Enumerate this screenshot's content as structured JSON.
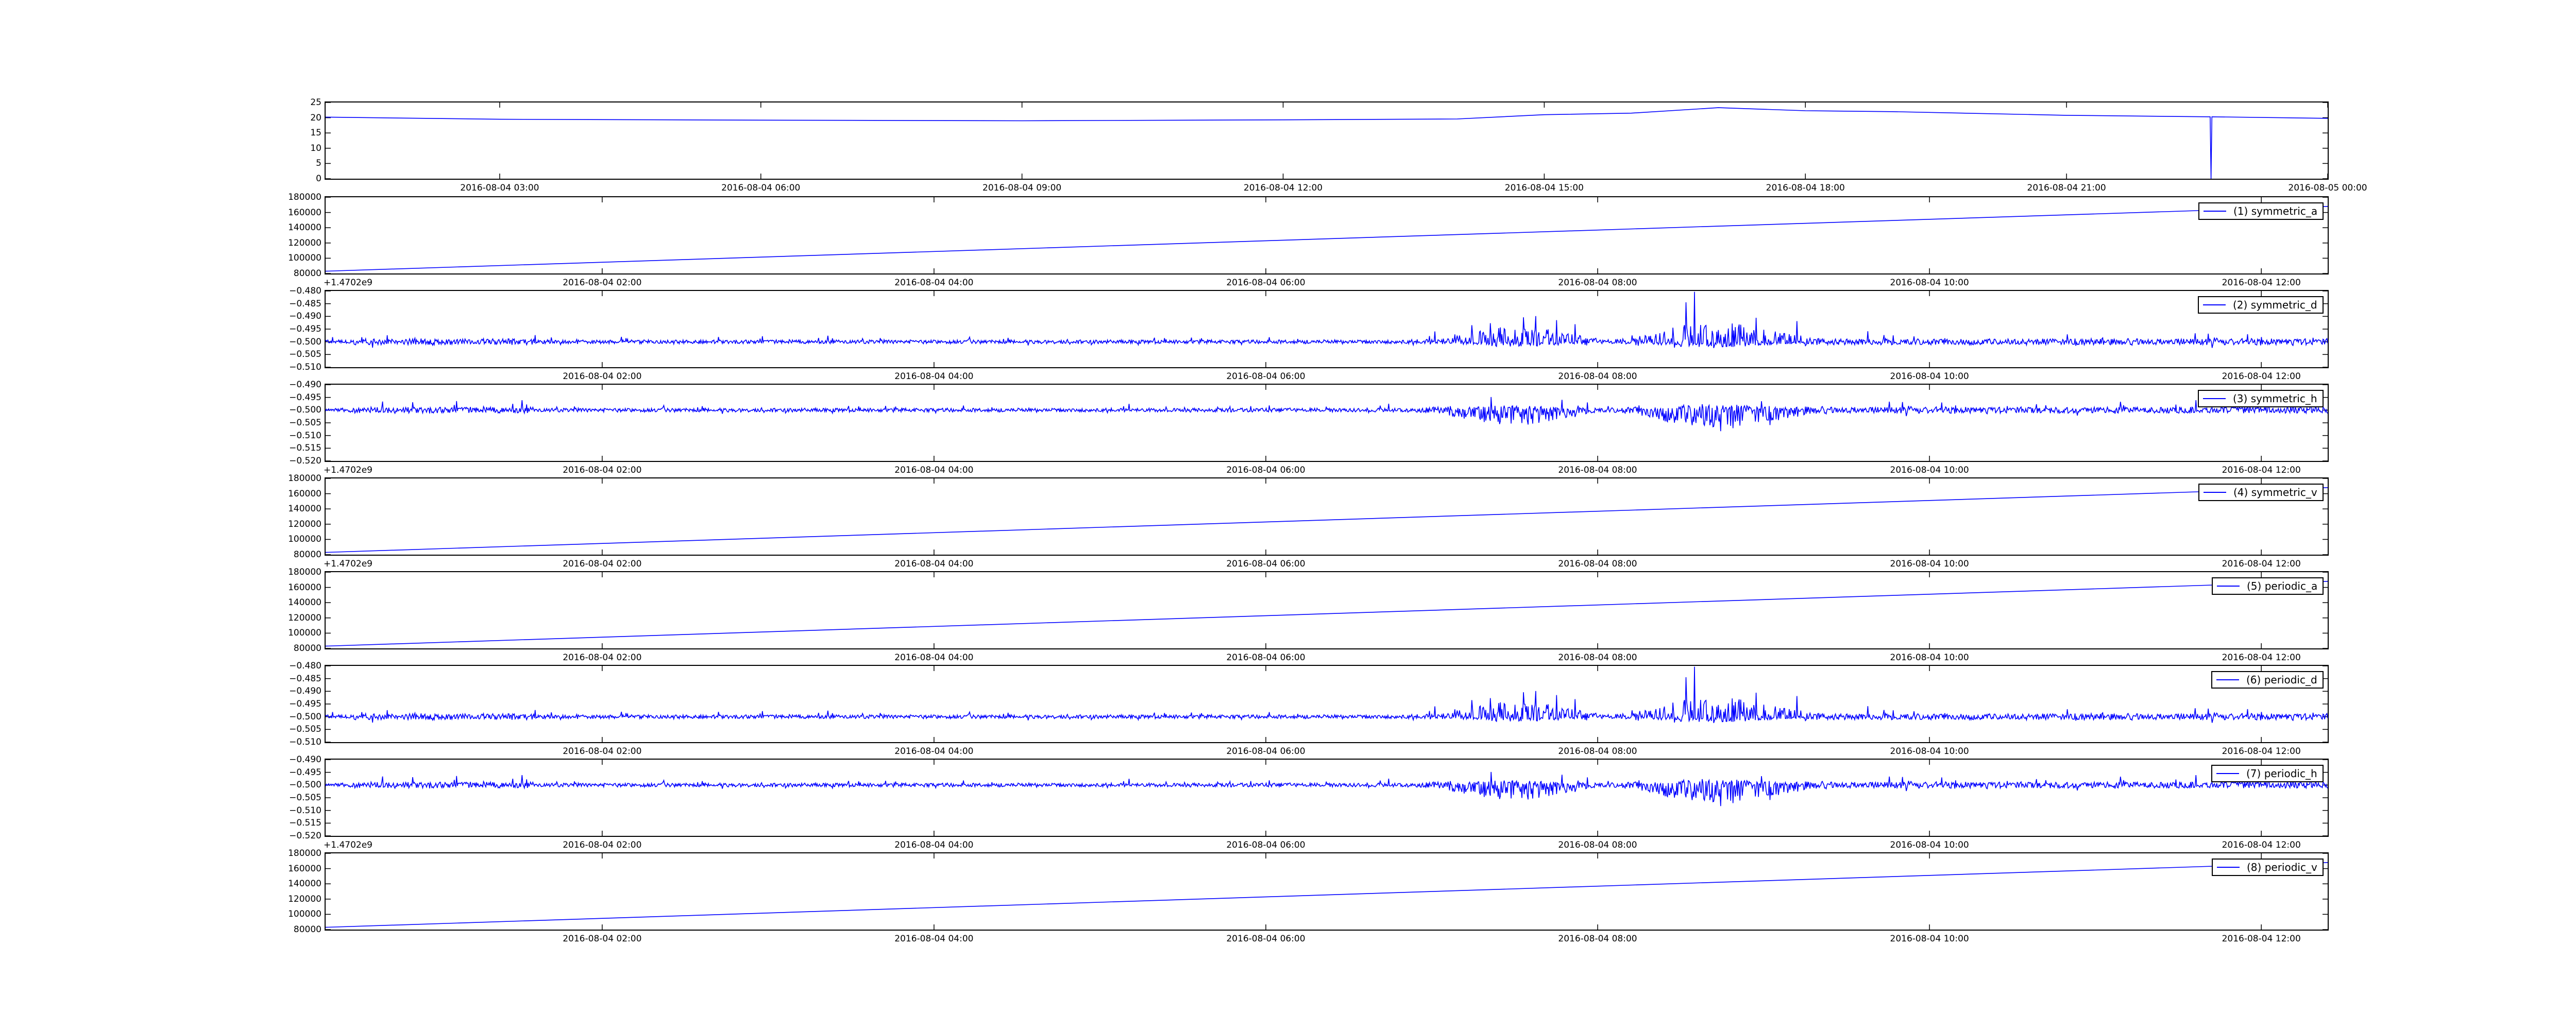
{
  "chart_data": [
    {
      "type": "line",
      "ylim": [
        0,
        25
      ],
      "yticks": [
        "0",
        "5",
        "10",
        "15",
        "20",
        "25"
      ],
      "xticks": [
        "2016-08-04 03:00",
        "2016-08-04 06:00",
        "2016-08-04 09:00",
        "2016-08-04 12:00",
        "2016-08-04 15:00",
        "2016-08-04 18:00",
        "2016-08-04 21:00",
        "2016-08-05 00:00"
      ],
      "xrange_hours": [
        1,
        24
      ],
      "x_hours": [
        1,
        3,
        6,
        9,
        12,
        14,
        15,
        16,
        17,
        18,
        19,
        21,
        22.65,
        22.66,
        22.67,
        24
      ],
      "values": [
        20.2,
        19.5,
        19.2,
        19.0,
        19.3,
        19.6,
        21.0,
        21.5,
        23.3,
        22.3,
        22.0,
        20.8,
        20.3,
        0,
        20.3,
        19.8
      ],
      "color": "#0000ff"
    },
    {
      "type": "line",
      "offset_text": "+1.4702e9",
      "ylim": [
        80000,
        180000
      ],
      "yticks": [
        "80000",
        "100000",
        "120000",
        "140000",
        "160000",
        "180000"
      ],
      "xticks": [
        "2016-08-04 02:00",
        "2016-08-04 04:00",
        "2016-08-04 06:00",
        "2016-08-04 08:00",
        "2016-08-04 10:00",
        "2016-08-04 12:00"
      ],
      "xrange_hours": [
        0.333,
        12.4
      ],
      "x_hours": [
        0.333,
        12.4
      ],
      "values": [
        83000,
        168000
      ],
      "legend": "(1) symmetric_a",
      "color": "#0000ff"
    },
    {
      "type": "line",
      "ylim": [
        -0.51,
        -0.48
      ],
      "yticks": [
        "−0.510",
        "−0.505",
        "−0.500",
        "−0.495",
        "−0.490",
        "−0.485",
        "−0.480"
      ],
      "xticks": [
        "2016-08-04 02:00",
        "2016-08-04 04:00",
        "2016-08-04 06:00",
        "2016-08-04 08:00",
        "2016-08-04 10:00",
        "2016-08-04 12:00"
      ],
      "xrange_hours": [
        0.333,
        12.4
      ],
      "baseline": -0.5,
      "legend": "(2) symmetric_d",
      "color": "#0000ff",
      "sign": 1
    },
    {
      "type": "line",
      "offset_text": "+1.4702e9",
      "ylim": [
        -0.52,
        -0.49
      ],
      "yticks": [
        "−0.520",
        "−0.515",
        "−0.510",
        "−0.505",
        "−0.500",
        "−0.495",
        "−0.490"
      ],
      "xticks": [
        "2016-08-04 02:00",
        "2016-08-04 04:00",
        "2016-08-04 06:00",
        "2016-08-04 08:00",
        "2016-08-04 10:00",
        "2016-08-04 12:00"
      ],
      "xrange_hours": [
        0.333,
        12.4
      ],
      "baseline": -0.5,
      "legend": "(3) symmetric_h",
      "color": "#0000ff",
      "sign": -1
    },
    {
      "type": "line",
      "offset_text": "+1.4702e9",
      "ylim": [
        80000,
        180000
      ],
      "yticks": [
        "80000",
        "100000",
        "120000",
        "140000",
        "160000",
        "180000"
      ],
      "xticks": [
        "2016-08-04 02:00",
        "2016-08-04 04:00",
        "2016-08-04 06:00",
        "2016-08-04 08:00",
        "2016-08-04 10:00",
        "2016-08-04 12:00"
      ],
      "xrange_hours": [
        0.333,
        12.4
      ],
      "x_hours": [
        0.333,
        12.4
      ],
      "values": [
        83000,
        168000
      ],
      "legend": "(4) symmetric_v",
      "color": "#0000ff"
    },
    {
      "type": "line",
      "ylim": [
        80000,
        180000
      ],
      "yticks": [
        "80000",
        "100000",
        "120000",
        "140000",
        "160000",
        "180000"
      ],
      "xticks": [
        "2016-08-04 02:00",
        "2016-08-04 04:00",
        "2016-08-04 06:00",
        "2016-08-04 08:00",
        "2016-08-04 10:00",
        "2016-08-04 12:00"
      ],
      "xrange_hours": [
        0.333,
        12.4
      ],
      "x_hours": [
        0.333,
        12.4
      ],
      "values": [
        83000,
        168000
      ],
      "legend": "(5) periodic_a",
      "color": "#0000ff"
    },
    {
      "type": "line",
      "ylim": [
        -0.51,
        -0.48
      ],
      "yticks": [
        "−0.510",
        "−0.505",
        "−0.500",
        "−0.495",
        "−0.490",
        "−0.485",
        "−0.480"
      ],
      "xticks": [
        "2016-08-04 02:00",
        "2016-08-04 04:00",
        "2016-08-04 06:00",
        "2016-08-04 08:00",
        "2016-08-04 10:00",
        "2016-08-04 12:00"
      ],
      "xrange_hours": [
        0.333,
        12.4
      ],
      "baseline": -0.5,
      "legend": "(6) periodic_d",
      "color": "#0000ff",
      "sign": 1
    },
    {
      "type": "line",
      "offset_text": "+1.4702e9",
      "ylim": [
        -0.52,
        -0.49
      ],
      "yticks": [
        "−0.520",
        "−0.515",
        "−0.510",
        "−0.505",
        "−0.500",
        "−0.495",
        "−0.490"
      ],
      "xticks": [
        "2016-08-04 02:00",
        "2016-08-04 04:00",
        "2016-08-04 06:00",
        "2016-08-04 08:00",
        "2016-08-04 10:00",
        "2016-08-04 12:00"
      ],
      "xrange_hours": [
        0.333,
        12.4
      ],
      "baseline": -0.5,
      "legend": "(7) periodic_h",
      "color": "#0000ff",
      "sign": -1
    },
    {
      "type": "line",
      "ylim": [
        80000,
        180000
      ],
      "yticks": [
        "80000",
        "100000",
        "120000",
        "140000",
        "160000",
        "180000"
      ],
      "xticks": [
        "2016-08-04 02:00",
        "2016-08-04 04:00",
        "2016-08-04 06:00",
        "2016-08-04 08:00",
        "2016-08-04 10:00",
        "2016-08-04 12:00"
      ],
      "xrange_hours": [
        0.333,
        12.4
      ],
      "x_hours": [
        0.333,
        12.4
      ],
      "values": [
        83000,
        168000
      ],
      "legend": "(8) periodic_v",
      "color": "#0000ff"
    }
  ]
}
